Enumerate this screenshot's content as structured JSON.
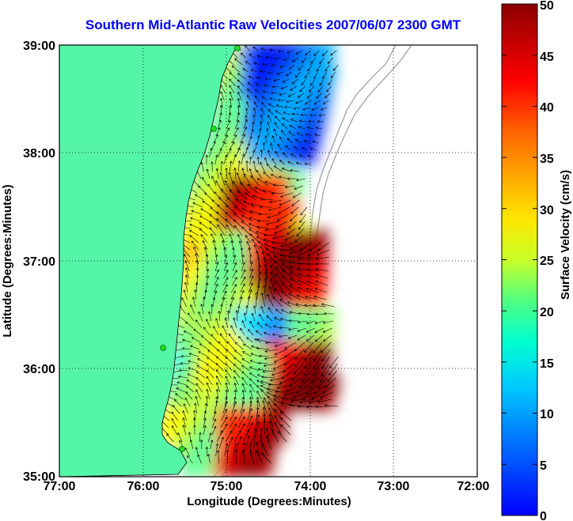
{
  "title": "Southern Mid-Atlantic Raw Velocities 2007/06/07 2300 GMT",
  "map": {
    "xlabel": "Longitude (Degrees:Minutes)",
    "ylabel": "Latitude (Degrees:Minutes)",
    "x_ticks": [
      "77:00",
      "76:00",
      "75:00",
      "74:00",
      "73:00",
      "72:00"
    ],
    "y_ticks": [
      "39:00",
      "38:00",
      "37:00",
      "36:00",
      "35:00"
    ],
    "lon_range": [
      -77,
      -72
    ],
    "lat_range": [
      35,
      39
    ],
    "grid": "dotted",
    "land_color": "#55f5a8",
    "coastline_color": "#000000",
    "bathymetry_color": "#9a9a9a",
    "vector_color": "#000000",
    "site_marker_color": "#22dd22"
  },
  "colorbar": {
    "label": "Surface Velocity (cm/s)",
    "ticks": [
      "50",
      "45",
      "40",
      "35",
      "30",
      "25",
      "20",
      "15",
      "10",
      "5",
      "0"
    ],
    "range": [
      0,
      50
    ],
    "colormap": "jet"
  }
}
